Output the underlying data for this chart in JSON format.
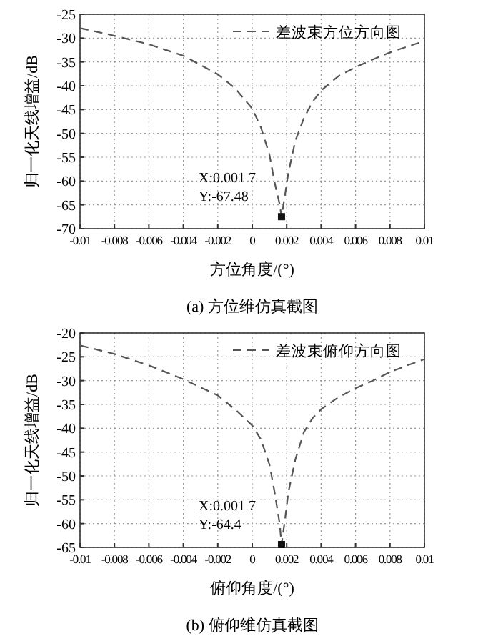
{
  "chart_data": [
    {
      "type": "line",
      "xlabel": "方位角度/(°)",
      "ylabel": "归一化天线增益/dB",
      "xlim": [
        -0.01,
        0.01
      ],
      "ylim": [
        -70,
        -25
      ],
      "xticks": [
        -0.01,
        -0.008,
        -0.006,
        -0.004,
        -0.002,
        0,
        0.002,
        0.004,
        0.006,
        0.008,
        0.01
      ],
      "yticks": [
        -70,
        -65,
        -60,
        -55,
        -50,
        -45,
        -40,
        -35,
        -30,
        -25
      ],
      "grid": true,
      "legend": "top right",
      "annotations": [
        {
          "text": "X:0.001 7\nY:-67.48",
          "x": 0.0017,
          "y": -67.48
        },
        "(a) 方位维仿真截图"
      ],
      "series": [
        {
          "name": "差波束方位方向图",
          "color": "#555555",
          "line_style": "dashed",
          "x": [
            -0.01,
            -0.008,
            -0.006,
            -0.004,
            -0.002,
            -0.001,
            0,
            0.0005,
            0.001,
            0.0013,
            0.0016,
            0.0017,
            0.0019,
            0.0021,
            0.0025,
            0.003,
            0.0035,
            0.004,
            0.005,
            0.006,
            0.007,
            0.008,
            0.009,
            0.01
          ],
          "values": [
            -27.9,
            -29.5,
            -31.3,
            -33.7,
            -37.6,
            -40.5,
            -44.8,
            -48.7,
            -54.5,
            -60.3,
            -65,
            -67.48,
            -63,
            -58.2,
            -51.6,
            -46.8,
            -43.4,
            -41,
            -38,
            -36.1,
            -34.5,
            -33,
            -31.8,
            -30.6
          ]
        },
        {
          "type": "scatter",
          "marker": "square",
          "color": "#111111",
          "x": [
            0.0017
          ],
          "values": [
            -67.48
          ]
        }
      ]
    },
    {
      "type": "line",
      "xlabel": "俯仰角度/(°)",
      "ylabel": "归一化天线增益/dB",
      "xlim": [
        -0.01,
        0.01
      ],
      "ylim": [
        -65,
        -20
      ],
      "xticks": [
        -0.01,
        -0.008,
        -0.006,
        -0.004,
        -0.002,
        0,
        0.002,
        0.004,
        0.006,
        0.008,
        0.01
      ],
      "yticks": [
        -65,
        -60,
        -55,
        -50,
        -45,
        -40,
        -35,
        -30,
        -25,
        -20
      ],
      "grid": true,
      "legend": "top right",
      "annotations": [
        {
          "text": "X:0.001 7\nY:-64.4",
          "x": 0.0017,
          "y": -64.4
        },
        "(b) 俯仰维仿真截图"
      ],
      "series": [
        {
          "name": "差波束俯仰方向图",
          "color": "#555555",
          "line_style": "dashed",
          "x": [
            -0.01,
            -0.008,
            -0.006,
            -0.004,
            -0.002,
            -0.001,
            0,
            0.0005,
            0.001,
            0.0013,
            0.0016,
            0.0017,
            0.0019,
            0.0021,
            0.0025,
            0.003,
            0.0035,
            0.004,
            0.005,
            0.006,
            0.007,
            0.008,
            0.009,
            0.01
          ],
          "values": [
            -22.6,
            -24.4,
            -26.8,
            -29.7,
            -33.1,
            -36,
            -39.4,
            -42.3,
            -47.6,
            -53.4,
            -60.2,
            -64.4,
            -59.2,
            -53.4,
            -46.6,
            -40.8,
            -37.9,
            -36,
            -33.5,
            -31.6,
            -30,
            -28.2,
            -26.8,
            -25.5
          ]
        },
        {
          "type": "scatter",
          "marker": "square",
          "color": "#111111",
          "x": [
            0.0017
          ],
          "values": [
            -64.4
          ]
        }
      ]
    }
  ]
}
